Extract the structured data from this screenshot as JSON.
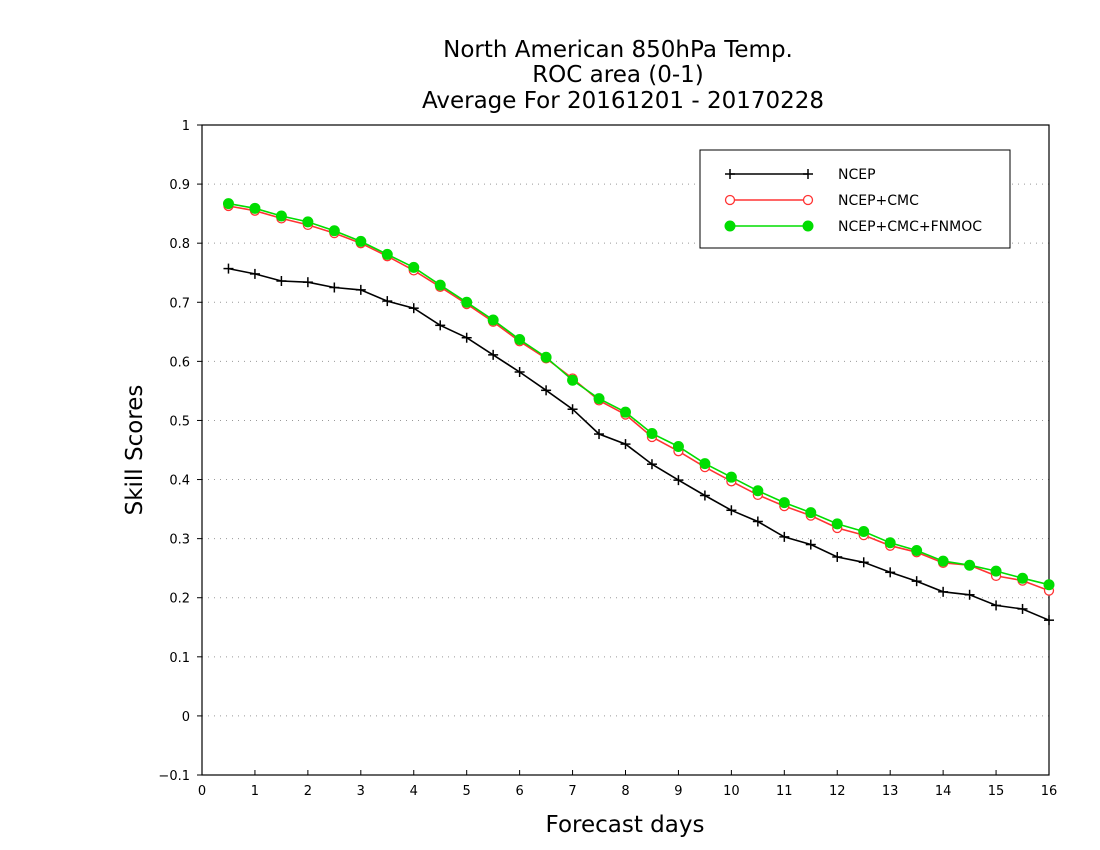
{
  "chart_data": {
    "type": "line",
    "title": [
      "North American 850hPa Temp.",
      "ROC area (0-1)",
      "Average For 20161201 - 20170228"
    ],
    "xlabel": "Forecast days",
    "ylabel": "Skill Scores",
    "xlim": [
      0,
      16
    ],
    "ylim": [
      -0.1,
      1
    ],
    "xticks": [
      "0",
      "1",
      "2",
      "3",
      "4",
      "5",
      "6",
      "7",
      "8",
      "9",
      "10",
      "11",
      "12",
      "13",
      "14",
      "15",
      "16"
    ],
    "yticks": [
      "−0.1",
      "0",
      "0.1",
      "0.2",
      "0.3",
      "0.4",
      "0.5",
      "0.6",
      "0.7",
      "0.8",
      "0.9",
      "1"
    ],
    "grid": true,
    "legend_position": "top-right",
    "x": [
      0.5,
      1,
      1.5,
      2,
      2.5,
      3,
      3.5,
      4,
      4.5,
      5,
      5.5,
      6,
      6.5,
      7,
      7.5,
      8,
      8.5,
      9,
      9.5,
      10,
      10.5,
      11,
      11.5,
      12,
      12.5,
      13,
      13.5,
      14,
      14.5,
      15,
      15.5,
      16
    ],
    "series": [
      {
        "name": "NCEP",
        "color": "#000000",
        "marker": "plus",
        "values": [
          0.757,
          0.748,
          0.736,
          0.734,
          0.725,
          0.721,
          0.702,
          0.69,
          0.661,
          0.64,
          0.611,
          0.582,
          0.551,
          0.519,
          0.477,
          0.46,
          0.426,
          0.399,
          0.373,
          0.348,
          0.329,
          0.303,
          0.29,
          0.269,
          0.26,
          0.243,
          0.228,
          0.21,
          0.205,
          0.187,
          0.181,
          0.162
        ]
      },
      {
        "name": "NCEP+CMC",
        "color": "#ff3333",
        "marker": "open-circle",
        "values": [
          0.863,
          0.855,
          0.842,
          0.831,
          0.817,
          0.8,
          0.778,
          0.754,
          0.726,
          0.697,
          0.667,
          0.634,
          0.605,
          0.571,
          0.534,
          0.51,
          0.472,
          0.448,
          0.421,
          0.397,
          0.374,
          0.355,
          0.339,
          0.318,
          0.306,
          0.288,
          0.277,
          0.259,
          0.255,
          0.237,
          0.229,
          0.212
        ]
      },
      {
        "name": "NCEP+CMC+FNMOC",
        "color": "#00dd00",
        "marker": "filled-circle",
        "values": [
          0.867,
          0.859,
          0.846,
          0.836,
          0.821,
          0.803,
          0.781,
          0.759,
          0.729,
          0.7,
          0.67,
          0.637,
          0.607,
          0.568,
          0.537,
          0.514,
          0.478,
          0.456,
          0.427,
          0.404,
          0.381,
          0.361,
          0.344,
          0.325,
          0.312,
          0.293,
          0.28,
          0.262,
          0.255,
          0.245,
          0.233,
          0.222
        ]
      }
    ]
  }
}
